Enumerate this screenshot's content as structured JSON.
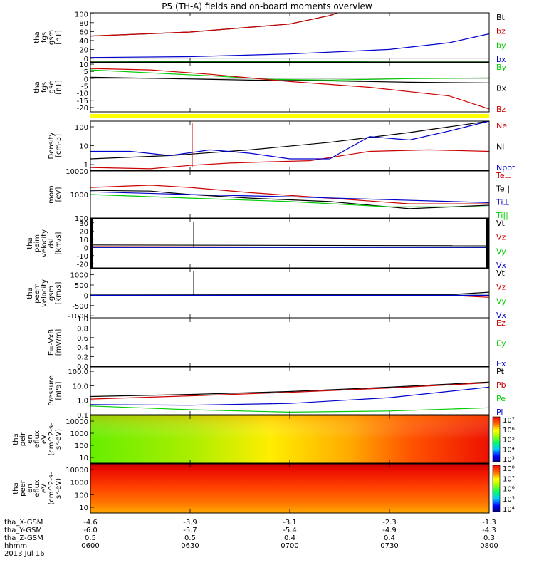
{
  "title": "P5 (TH-A) fields and on-board moments overview",
  "colors": {
    "black": "#000000",
    "red": "#cc0000",
    "green": "#00cc00",
    "blue": "#0000cc",
    "yellow": "#ffff00"
  },
  "chart_data": [
    {
      "type": "line",
      "name": "fgs-gsm",
      "ylabel": [
        "tha",
        "fgs",
        "gsm",
        "[nT]"
      ],
      "yticks": [
        0,
        20,
        40,
        60,
        80,
        100
      ],
      "ylim": [
        -8,
        102
      ],
      "series": [
        {
          "name": "Bt",
          "color": "#000000",
          "x": [
            0,
            0.25,
            0.5,
            0.6,
            0.62
          ],
          "y": [
            50,
            59,
            77,
            96,
            102
          ]
        },
        {
          "name": "bz",
          "color": "#cc0000",
          "x": [
            0,
            0.25,
            0.5,
            0.6,
            0.62
          ],
          "y": [
            50,
            59,
            77,
            96,
            102
          ]
        },
        {
          "name": "by",
          "color": "#00cc00",
          "x": [
            0,
            0.25,
            0.5,
            0.75,
            1
          ],
          "y": [
            -6,
            -6.5,
            -6.5,
            -6,
            -6
          ]
        },
        {
          "name": "bx",
          "color": "#0000cc",
          "x": [
            0,
            0.25,
            0.5,
            0.75,
            0.9,
            1
          ],
          "y": [
            2,
            4,
            10,
            20,
            35,
            55
          ]
        }
      ],
      "legend": [
        "Bt",
        "bz",
        "by",
        "bx"
      ]
    },
    {
      "type": "line",
      "name": "fgs-gse",
      "ylabel": [
        "tha",
        "fgs",
        "gse",
        "[nT]"
      ],
      "yticks": [
        -20,
        -15,
        -10,
        -5,
        0,
        5,
        10
      ],
      "ylim": [
        -23,
        11
      ],
      "series": [
        {
          "name": "By",
          "color": "#00cc00",
          "x": [
            0,
            0.15,
            0.3,
            0.45,
            0.6,
            0.8,
            1
          ],
          "y": [
            6,
            4,
            2,
            -0.5,
            -1,
            0,
            0.5
          ]
        },
        {
          "name": "Bx",
          "color": "#000000",
          "x": [
            0,
            0.2,
            0.4,
            0.6,
            0.8,
            1
          ],
          "y": [
            1,
            0,
            -1,
            -1.5,
            -2.5,
            -3
          ]
        },
        {
          "name": "Bz",
          "color": "#cc0000",
          "x": [
            0,
            0.15,
            0.3,
            0.5,
            0.7,
            0.9,
            1
          ],
          "y": [
            7,
            6,
            3,
            -2,
            -6,
            -12,
            -21
          ]
        }
      ],
      "legend": [
        "By",
        "Bx",
        "Bz"
      ]
    },
    {
      "type": "line",
      "name": "density",
      "scale": "log",
      "ylabel": [
        "Density",
        "[cm-3]"
      ],
      "yticks": [
        1,
        10,
        100
      ],
      "ylim": [
        0.5,
        200
      ],
      "series": [
        {
          "name": "Ne",
          "color": "#cc0000",
          "x": [
            0,
            0.15,
            0.25,
            0.35,
            0.45,
            0.55,
            0.7,
            0.85,
            1
          ],
          "y": [
            0.7,
            0.6,
            0.9,
            1.2,
            1.4,
            1.6,
            5,
            6,
            5
          ]
        },
        {
          "name": "Ni",
          "color": "#000000",
          "x": [
            0,
            0.2,
            0.4,
            0.6,
            0.8,
            1
          ],
          "y": [
            2,
            3,
            6,
            15,
            50,
            200
          ]
        },
        {
          "name": "Npot",
          "color": "#0000cc",
          "x": [
            0,
            0.1,
            0.2,
            0.3,
            0.4,
            0.5,
            0.6,
            0.7,
            0.8,
            0.9,
            1
          ],
          "y": [
            5,
            5,
            3,
            6,
            4,
            2,
            2,
            30,
            20,
            60,
            200
          ]
        }
      ],
      "legend": [
        "Ne",
        "Ni",
        "Npot"
      ]
    },
    {
      "type": "line",
      "name": "mom-temp",
      "scale": "log",
      "ylabel": [
        "mom",
        "[eV]"
      ],
      "yticks": [
        100,
        1000,
        10000
      ],
      "ylim": [
        100,
        10000
      ],
      "series": [
        {
          "name": "Teperp",
          "color": "#cc0000",
          "x": [
            0,
            0.15,
            0.25,
            0.4,
            0.6,
            0.8,
            1
          ],
          "y": [
            2000,
            2500,
            2000,
            1200,
            700,
            400,
            400
          ]
        },
        {
          "name": "Tepar",
          "color": "#000000",
          "x": [
            0,
            0.15,
            0.25,
            0.4,
            0.6,
            0.8,
            1
          ],
          "y": [
            1500,
            1400,
            1000,
            700,
            500,
            250,
            350
          ]
        },
        {
          "name": "Tiperp",
          "color": "#0000cc",
          "x": [
            0,
            0.25,
            0.5,
            0.75,
            1
          ],
          "y": [
            1300,
            1000,
            800,
            600,
            450
          ]
        },
        {
          "name": "Tipar",
          "color": "#00cc00",
          "x": [
            0,
            0.25,
            0.5,
            0.75,
            1
          ],
          "y": [
            1000,
            700,
            500,
            300,
            300
          ]
        }
      ],
      "legend": [
        "Te⊥",
        "Te||",
        "Ti⊥",
        "Ti||"
      ]
    },
    {
      "type": "line",
      "name": "peim-velocity-dsl",
      "ylabel": [
        "tha",
        "peim",
        "velocity",
        "dsl",
        "[km/s]"
      ],
      "yticks": [
        -20,
        -10,
        0,
        10,
        20,
        30
      ],
      "ylim": [
        -25,
        35
      ],
      "series": [
        {
          "name": "Vt",
          "color": "#000000",
          "x": [
            0,
            1
          ],
          "y": [
            3,
            2
          ]
        },
        {
          "name": "Vz",
          "color": "#cc0000",
          "x": [
            0,
            1
          ],
          "y": [
            1,
            0
          ]
        },
        {
          "name": "Vy",
          "color": "#00cc00",
          "x": [
            0,
            1
          ],
          "y": [
            0,
            0
          ]
        },
        {
          "name": "Vx",
          "color": "#0000cc",
          "x": [
            0,
            1
          ],
          "y": [
            0,
            0
          ]
        }
      ],
      "legend": [
        "Vt",
        "Vz",
        "Vy",
        "Vx"
      ]
    },
    {
      "type": "line",
      "name": "peem-velocity-gsm",
      "ylabel": [
        "tha",
        "peem",
        "velocity",
        "gsm",
        "[km/s]"
      ],
      "yticks": [
        -1000,
        -500,
        0,
        500,
        1000
      ],
      "ylim": [
        -1100,
        1300
      ],
      "series": [
        {
          "name": "Vt",
          "color": "#000000",
          "x": [
            0,
            0.9,
            1
          ],
          "y": [
            20,
            30,
            150
          ]
        },
        {
          "name": "Vz",
          "color": "#cc0000",
          "x": [
            0,
            0.9,
            1
          ],
          "y": [
            0,
            0,
            -100
          ]
        },
        {
          "name": "Vy",
          "color": "#00cc00",
          "x": [
            0,
            1
          ],
          "y": [
            0,
            0
          ]
        },
        {
          "name": "Vx",
          "color": "#0000cc",
          "x": [
            0,
            1
          ],
          "y": [
            0,
            0
          ]
        }
      ],
      "legend": [
        "Vt",
        "Vz",
        "Vy",
        "Vx"
      ]
    },
    {
      "type": "line",
      "name": "e-field",
      "ylabel": [
        "E=-VxB",
        "[mV/m]"
      ],
      "yticks": [
        0.0,
        0.2,
        0.4,
        0.6,
        0.8,
        1.0
      ],
      "ytick_labels": [
        "0.0",
        "0.2",
        "0.4",
        "0.6",
        "0.8",
        "1.0"
      ],
      "ylim": [
        0,
        1
      ],
      "series": [],
      "legend": [
        "Ez",
        "Ey",
        "Ex"
      ]
    },
    {
      "type": "line",
      "name": "pressure",
      "scale": "log",
      "ylabel": [
        "Pressure",
        "[nPa]"
      ],
      "yticks": [
        0.1,
        1.0,
        10.0,
        100.0
      ],
      "ytick_labels": [
        "0.1",
        "1.0",
        "10.0",
        "100.0"
      ],
      "ylim": [
        0.1,
        200
      ],
      "series": [
        {
          "name": "Pt",
          "color": "#000000",
          "x": [
            0,
            0.25,
            0.5,
            0.75,
            1
          ],
          "y": [
            1.8,
            2.5,
            4,
            8,
            18
          ]
        },
        {
          "name": "Pb",
          "color": "#cc0000",
          "x": [
            0,
            0.25,
            0.5,
            0.75,
            1
          ],
          "y": [
            1.2,
            2,
            3.5,
            7,
            16
          ]
        },
        {
          "name": "Pe",
          "color": "#00cc00",
          "x": [
            0,
            0.25,
            0.5,
            0.75,
            1
          ],
          "y": [
            0.4,
            0.22,
            0.15,
            0.18,
            0.3
          ]
        },
        {
          "name": "Pi",
          "color": "#0000cc",
          "x": [
            0,
            0.25,
            0.5,
            0.75,
            1
          ],
          "y": [
            0.5,
            0.45,
            0.6,
            1.5,
            8
          ]
        }
      ],
      "legend": [
        "Pt",
        "Pb",
        "Pe",
        "Pi"
      ]
    },
    {
      "type": "heatmap",
      "name": "peir-en-eflux",
      "ylabel": [
        "tha",
        "peir",
        "en",
        "eflux",
        "eV",
        "(cm^2-s-",
        "sr-eV)"
      ],
      "yticks": [
        10,
        100,
        1000,
        10000
      ],
      "ytick_labels": [
        "10",
        "100",
        "1000",
        "10000"
      ],
      "colorbar": {
        "ticks": [
          "10³",
          "10⁴",
          "10⁵",
          "10⁶",
          "10⁷"
        ]
      }
    },
    {
      "type": "heatmap",
      "name": "peer-en-eflux",
      "ylabel": [
        "tha",
        "peer",
        "en",
        "eflux",
        "eV",
        "(cm^2-s-",
        "sr-eV)"
      ],
      "yticks": [
        10,
        100,
        1000,
        10000
      ],
      "ytick_labels": [
        "10",
        "100",
        "1000",
        "10000"
      ],
      "colorbar": {
        "ticks": [
          "10⁴",
          "10⁵",
          "10⁶",
          "10⁷",
          "10⁸"
        ]
      }
    }
  ],
  "xaxis": {
    "row_labels": [
      "tha_X-GSM",
      "tha_Y-GSM",
      "tha_Z-GSM",
      "hhmm",
      "2013 Jul 16"
    ],
    "columns": [
      {
        "vals": [
          "-4.6",
          "-6.0",
          "0.5",
          "0600"
        ]
      },
      {
        "vals": [
          "-3.9",
          "-5.7",
          "0.5",
          "0630"
        ]
      },
      {
        "vals": [
          "-3.1",
          "-5.4",
          "0.4",
          "0700"
        ]
      },
      {
        "vals": [
          "-2.3",
          "-4.9",
          "0.4",
          "0730"
        ]
      },
      {
        "vals": [
          "-1.3",
          "-4.3",
          "0.3",
          "0800"
        ]
      }
    ]
  }
}
